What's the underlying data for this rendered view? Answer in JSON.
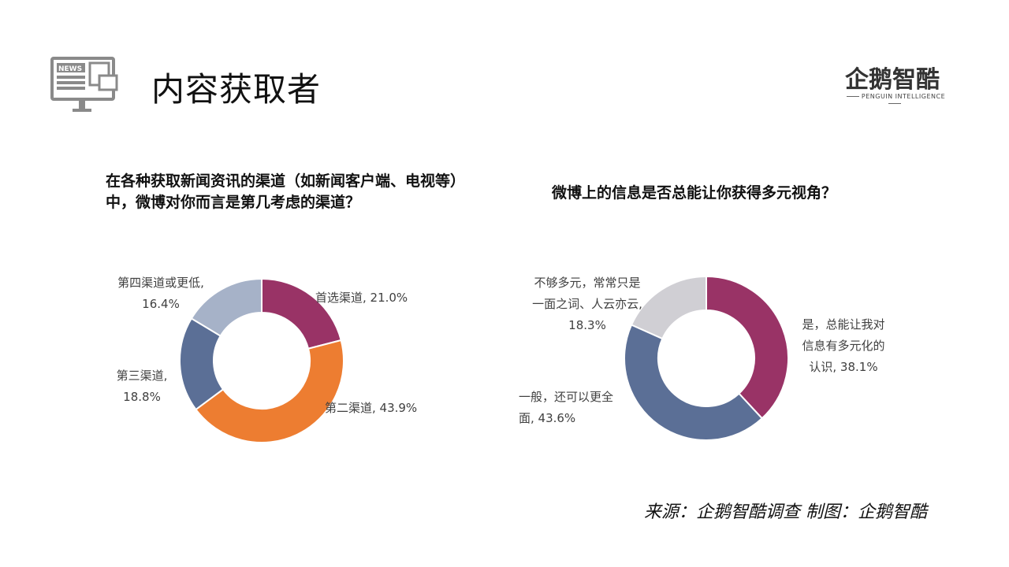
{
  "header": {
    "icon": "news-monitor-icon",
    "title": "内容获取者"
  },
  "logo": {
    "name": "企鹅智酷",
    "subtitle": "PENGUIN INTELLIGENCE"
  },
  "chart_data": [
    {
      "type": "pie",
      "donut": true,
      "title": "在各种获取新闻资讯的渠道（如新闻客户端、电视等）中，微博对你而言是第几考虑的渠道？",
      "categories": [
        "首选渠道",
        "第二渠道",
        "第三渠道",
        "第四渠道或更低"
      ],
      "values": [
        21.0,
        43.9,
        18.8,
        16.4
      ],
      "colors": [
        "#993366",
        "#ED7D31",
        "#5B6F96",
        "#A6B2C8"
      ],
      "labels": [
        "首选渠道, 21.0%",
        "第二渠道, 43.9%",
        "第三渠道,",
        "18.8%",
        "第四渠道或更低,",
        "16.4%"
      ]
    },
    {
      "type": "pie",
      "donut": true,
      "title": "微博上的信息是否总能让你获得多元视角？",
      "categories": [
        "是，总能让我对信息有多元化的认识",
        "一般，还可以更全面",
        "不够多元，常常只是一面之词、人云亦云"
      ],
      "values": [
        38.1,
        43.6,
        18.3
      ],
      "colors": [
        "#993366",
        "#5B6F96",
        "#D0CFD4"
      ],
      "labels": [
        "是，总能让我对",
        "信息有多元化的",
        "认识, 38.1%",
        "一般，还可以更全",
        "面, 43.6%",
        "不够多元，常常只是",
        "一面之词、人云亦云,",
        "18.3%"
      ]
    }
  ],
  "footer": {
    "source": "来源：企鹅智酷调查   制图：企鹅智酷"
  }
}
